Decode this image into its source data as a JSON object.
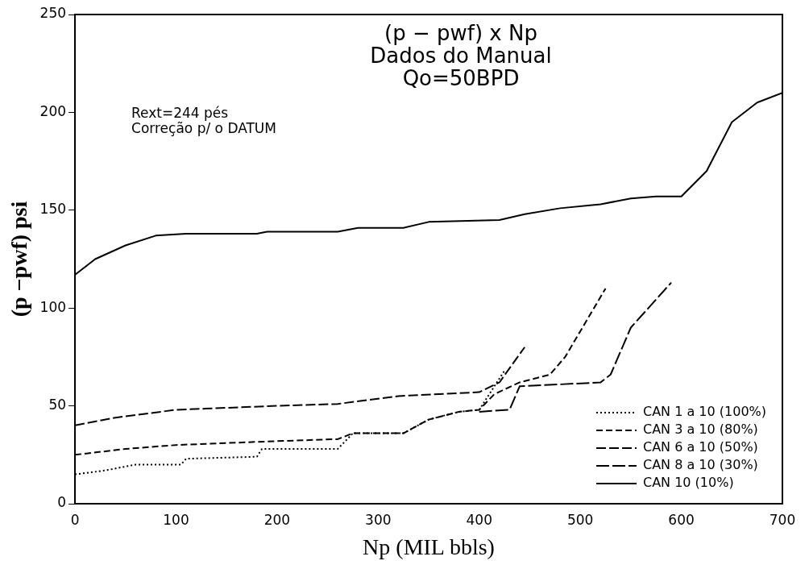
{
  "chart_data": {
    "type": "line",
    "title": "(p − pwf) x Np",
    "subtitle": "Dados do Manual\nQo=50BPD",
    "xlabel": "Np (MIL bbls)",
    "ylabel": "(p −pwf) psi",
    "annotations": [
      "Rext=244 pés\nCorreção p/ o DATUM"
    ],
    "xlim": [
      0,
      700
    ],
    "xticks": [
      0,
      100,
      200,
      300,
      400,
      500,
      600,
      700
    ],
    "ylim": [
      0,
      250
    ],
    "yticks": [
      0,
      50,
      100,
      150,
      200,
      250
    ],
    "grid": false,
    "legend": "bottom right",
    "marker": "none",
    "series": [
      {
        "name": "CAN 1 a 10 (100%)",
        "color": "#000000",
        "line_style": "dotted",
        "x": [
          0,
          30,
          60,
          105,
          110,
          180,
          185,
          260,
          275,
          325,
          350,
          380,
          400,
          425
        ],
        "values": [
          15,
          17,
          20,
          20,
          23,
          24,
          28,
          28,
          36,
          36,
          43,
          47,
          48,
          68
        ]
      },
      {
        "name": "CAN 3 a 10 (80%)",
        "color": "#000000",
        "line_style": "dashed",
        "x": [
          0,
          50,
          100,
          200,
          260,
          275,
          325,
          350,
          380,
          400,
          415,
          440,
          470,
          485,
          525
        ],
        "values": [
          25,
          28,
          30,
          32,
          33,
          36,
          36,
          43,
          47,
          48,
          56,
          62,
          66,
          75,
          110
        ]
      },
      {
        "name": "CAN 6 a 10 (50%)",
        "color": "#000000",
        "line_style": "dashed",
        "x": [
          0,
          40,
          100,
          200,
          260,
          320,
          400,
          420,
          445
        ],
        "values": [
          40,
          44,
          48,
          50,
          51,
          55,
          57,
          62,
          80
        ]
      },
      {
        "name": "CAN 8 a 10 (30%)",
        "color": "#000000",
        "line_style": "dashed",
        "x": [
          400,
          430,
          440,
          520,
          530,
          550,
          590
        ],
        "values": [
          47,
          48,
          60,
          62,
          66,
          90,
          113
        ]
      },
      {
        "name": "CAN 10 (10%)",
        "color": "#000000",
        "line_style": "solid",
        "x": [
          0,
          20,
          50,
          80,
          110,
          180,
          190,
          260,
          280,
          325,
          350,
          420,
          445,
          480,
          520,
          550,
          575,
          600,
          625,
          650,
          675,
          700
        ],
        "values": [
          117,
          125,
          132,
          137,
          138,
          138,
          139,
          139,
          141,
          141,
          144,
          145,
          148,
          151,
          153,
          156,
          157,
          157,
          170,
          195,
          205,
          210
        ]
      }
    ]
  }
}
